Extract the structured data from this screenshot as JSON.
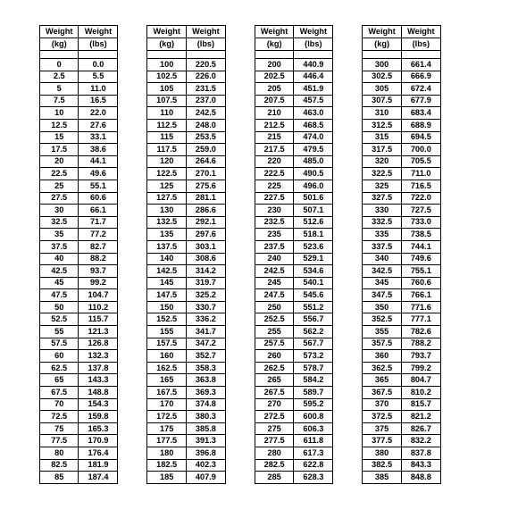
{
  "headers": {
    "h1": "Weight",
    "u_kg": "(kg)",
    "u_lb": "(lbs)"
  },
  "columns": [
    {
      "rows": [
        [
          "0",
          "0.0"
        ],
        [
          "2.5",
          "5.5"
        ],
        [
          "5",
          "11.0"
        ],
        [
          "7.5",
          "16.5"
        ],
        [
          "10",
          "22.0"
        ],
        [
          "12.5",
          "27.6"
        ],
        [
          "15",
          "33.1"
        ],
        [
          "17.5",
          "38.6"
        ],
        [
          "20",
          "44.1"
        ],
        [
          "22.5",
          "49.6"
        ],
        [
          "25",
          "55.1"
        ],
        [
          "27.5",
          "60.6"
        ],
        [
          "30",
          "66.1"
        ],
        [
          "32.5",
          "71.7"
        ],
        [
          "35",
          "77.2"
        ],
        [
          "37.5",
          "82.7"
        ],
        [
          "40",
          "88.2"
        ],
        [
          "42.5",
          "93.7"
        ],
        [
          "45",
          "99.2"
        ],
        [
          "47.5",
          "104.7"
        ],
        [
          "50",
          "110.2"
        ],
        [
          "52.5",
          "115.7"
        ],
        [
          "55",
          "121.3"
        ],
        [
          "57.5",
          "126.8"
        ],
        [
          "60",
          "132.3"
        ],
        [
          "62.5",
          "137.8"
        ],
        [
          "65",
          "143.3"
        ],
        [
          "67.5",
          "148.8"
        ],
        [
          "70",
          "154.3"
        ],
        [
          "72.5",
          "159.8"
        ],
        [
          "75",
          "165.3"
        ],
        [
          "77.5",
          "170.9"
        ],
        [
          "80",
          "176.4"
        ],
        [
          "82.5",
          "181.9"
        ],
        [
          "85",
          "187.4"
        ]
      ]
    },
    {
      "rows": [
        [
          "100",
          "220.5"
        ],
        [
          "102.5",
          "226.0"
        ],
        [
          "105",
          "231.5"
        ],
        [
          "107.5",
          "237.0"
        ],
        [
          "110",
          "242.5"
        ],
        [
          "112.5",
          "248.0"
        ],
        [
          "115",
          "253.5"
        ],
        [
          "117.5",
          "259.0"
        ],
        [
          "120",
          "264.6"
        ],
        [
          "122.5",
          "270.1"
        ],
        [
          "125",
          "275.6"
        ],
        [
          "127.5",
          "281.1"
        ],
        [
          "130",
          "286.6"
        ],
        [
          "132.5",
          "292.1"
        ],
        [
          "135",
          "297.6"
        ],
        [
          "137.5",
          "303.1"
        ],
        [
          "140",
          "308.6"
        ],
        [
          "142.5",
          "314.2"
        ],
        [
          "145",
          "319.7"
        ],
        [
          "147.5",
          "325.2"
        ],
        [
          "150",
          "330.7"
        ],
        [
          "152.5",
          "336.2"
        ],
        [
          "155",
          "341.7"
        ],
        [
          "157.5",
          "347.2"
        ],
        [
          "160",
          "352.7"
        ],
        [
          "162.5",
          "358.3"
        ],
        [
          "165",
          "363.8"
        ],
        [
          "167.5",
          "369.3"
        ],
        [
          "170",
          "374.8"
        ],
        [
          "172.5",
          "380.3"
        ],
        [
          "175",
          "385.8"
        ],
        [
          "177.5",
          "391.3"
        ],
        [
          "180",
          "396.8"
        ],
        [
          "182.5",
          "402.3"
        ],
        [
          "185",
          "407.9"
        ]
      ]
    },
    {
      "rows": [
        [
          "200",
          "440.9"
        ],
        [
          "202.5",
          "446.4"
        ],
        [
          "205",
          "451.9"
        ],
        [
          "207.5",
          "457.5"
        ],
        [
          "210",
          "463.0"
        ],
        [
          "212.5",
          "468.5"
        ],
        [
          "215",
          "474.0"
        ],
        [
          "217.5",
          "479.5"
        ],
        [
          "220",
          "485.0"
        ],
        [
          "222.5",
          "490.5"
        ],
        [
          "225",
          "496.0"
        ],
        [
          "227.5",
          "501.6"
        ],
        [
          "230",
          "507.1"
        ],
        [
          "232.5",
          "512.6"
        ],
        [
          "235",
          "518.1"
        ],
        [
          "237.5",
          "523.6"
        ],
        [
          "240",
          "529.1"
        ],
        [
          "242.5",
          "534.6"
        ],
        [
          "245",
          "540.1"
        ],
        [
          "247.5",
          "545.6"
        ],
        [
          "250",
          "551.2"
        ],
        [
          "252.5",
          "556.7"
        ],
        [
          "255",
          "562.2"
        ],
        [
          "257.5",
          "567.7"
        ],
        [
          "260",
          "573.2"
        ],
        [
          "262.5",
          "578.7"
        ],
        [
          "265",
          "584.2"
        ],
        [
          "267.5",
          "589.7"
        ],
        [
          "270",
          "595.2"
        ],
        [
          "272.5",
          "600.8"
        ],
        [
          "275",
          "606.3"
        ],
        [
          "277.5",
          "611.8"
        ],
        [
          "280",
          "617.3"
        ],
        [
          "282.5",
          "622.8"
        ],
        [
          "285",
          "628.3"
        ]
      ]
    },
    {
      "rows": [
        [
          "300",
          "661.4"
        ],
        [
          "302.5",
          "666.9"
        ],
        [
          "305",
          "672.4"
        ],
        [
          "307.5",
          "677.9"
        ],
        [
          "310",
          "683.4"
        ],
        [
          "312.5",
          "688.9"
        ],
        [
          "315",
          "694.5"
        ],
        [
          "317.5",
          "700.0"
        ],
        [
          "320",
          "705.5"
        ],
        [
          "322.5",
          "711.0"
        ],
        [
          "325",
          "716.5"
        ],
        [
          "327.5",
          "722.0"
        ],
        [
          "330",
          "727.5"
        ],
        [
          "332.5",
          "733.0"
        ],
        [
          "335",
          "738.5"
        ],
        [
          "337.5",
          "744.1"
        ],
        [
          "340",
          "749.6"
        ],
        [
          "342.5",
          "755.1"
        ],
        [
          "345",
          "760.6"
        ],
        [
          "347.5",
          "766.1"
        ],
        [
          "350",
          "771.6"
        ],
        [
          "352.5",
          "777.1"
        ],
        [
          "355",
          "782.6"
        ],
        [
          "357.5",
          "788.2"
        ],
        [
          "360",
          "793.7"
        ],
        [
          "362.5",
          "799.2"
        ],
        [
          "365",
          "804.7"
        ],
        [
          "367.5",
          "810.2"
        ],
        [
          "370",
          "815.7"
        ],
        [
          "372.5",
          "821.2"
        ],
        [
          "375",
          "826.7"
        ],
        [
          "377.5",
          "832.2"
        ],
        [
          "380",
          "837.8"
        ],
        [
          "382.5",
          "843.3"
        ],
        [
          "385",
          "848.8"
        ]
      ]
    }
  ]
}
